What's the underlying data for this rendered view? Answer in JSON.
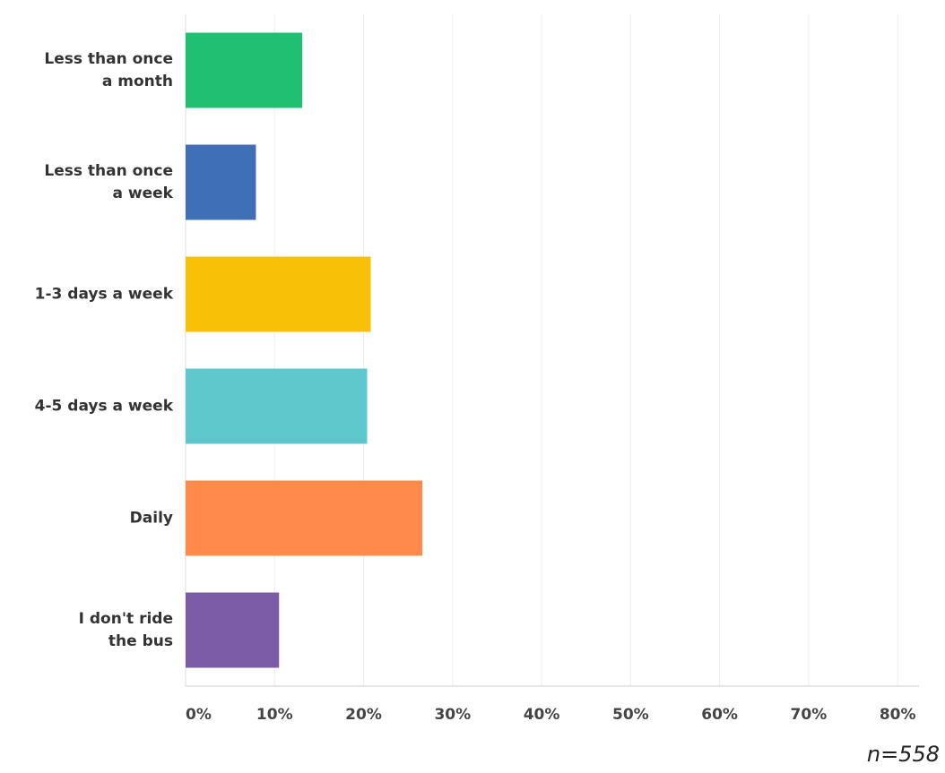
{
  "chart_data": {
    "type": "hbar",
    "categories": [
      "Less than once\na month",
      "Less than once\na week",
      "1-3 days a week",
      "4-5 days a week",
      "Daily",
      "I don't ride\nthe bus"
    ],
    "values": [
      13.1,
      7.9,
      20.8,
      20.4,
      26.6,
      10.5
    ],
    "colors": [
      "#20bf72",
      "#3f6fb6",
      "#f8c006",
      "#5ec8cc",
      "#ff8a4c",
      "#7c5ca7"
    ],
    "xlim": [
      0,
      82.4
    ],
    "xticks": [
      {
        "value": 0,
        "label": "0%"
      },
      {
        "value": 10,
        "label": "10%"
      },
      {
        "value": 20,
        "label": "20%"
      },
      {
        "value": 30,
        "label": "30%"
      },
      {
        "value": 40,
        "label": "40%"
      },
      {
        "value": 50,
        "label": "50%"
      },
      {
        "value": 60,
        "label": "60%"
      },
      {
        "value": 70,
        "label": "70%"
      },
      {
        "value": 80,
        "label": "80%"
      }
    ],
    "grid": true,
    "note": "n=558"
  }
}
